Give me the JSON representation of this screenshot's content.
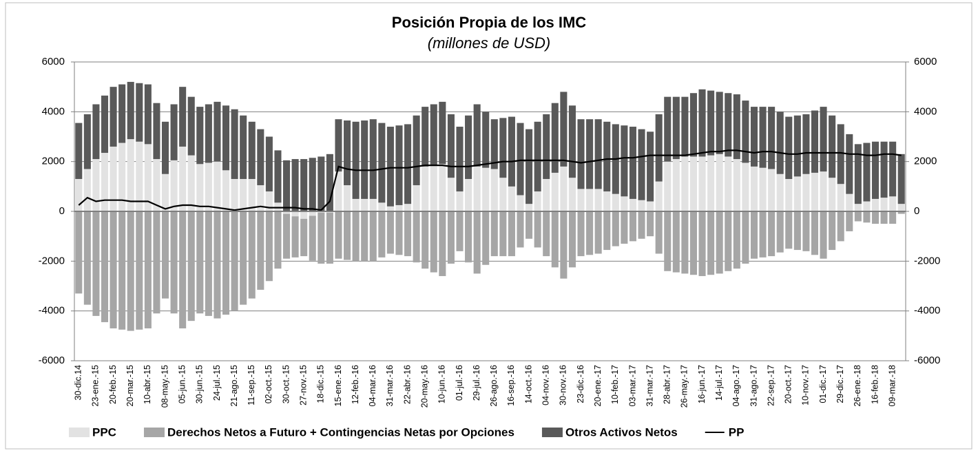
{
  "chart_data": {
    "type": "bar",
    "title": "Posición Propia de los IMC",
    "subtitle": "(millones de USD)",
    "categories": [
      "30-dic.14",
      null,
      "23-ene.-15",
      null,
      "20-feb.-15",
      null,
      "20-mar.-15",
      null,
      "10-abr.-15",
      null,
      "08-may.-15",
      null,
      "05-jun.-15",
      null,
      "30-jun.-15",
      null,
      "24-jul.-15",
      null,
      "21-ago.-15",
      null,
      "11-sep.-15",
      null,
      "02-oct.-15",
      null,
      "30-oct.-15",
      null,
      "27-nov.-15",
      null,
      "18-dic.-15",
      null,
      "15-ene.-16",
      null,
      "12-feb.-16",
      null,
      "04-mar.-16",
      null,
      "31-mar.-16",
      null,
      "22-abr.-16",
      null,
      "20-may.-16",
      null,
      "10-jun.-16",
      null,
      "01-jul.-16",
      null,
      "29-jul.-16",
      null,
      "26-ago.-16",
      null,
      "16-sep.-16",
      null,
      "14-oct.-16",
      null,
      "04-nov.-16",
      null,
      "30-nov.-16",
      null,
      "23-dic.-16",
      null,
      "20-ene.-17",
      null,
      "10-feb.-17",
      null,
      "03-mar.-17",
      null,
      "31-mar.-17",
      null,
      "28-abr.-17",
      null,
      "26-may.-17",
      null,
      "16-jun.-17",
      null,
      "14-jul.-17",
      null,
      "04-ago.-17",
      null,
      "31-ago.-17",
      null,
      "22-sep.-17",
      null,
      "20-oct.-17",
      null,
      "10-nov.-17",
      null,
      "01-dic.-17",
      null,
      "29-dic.-17",
      null,
      "26-ene.-18",
      null,
      "16-feb.-18",
      null,
      "09-mar.-18",
      null
    ],
    "series": [
      {
        "name": "PPC",
        "color": "#e2e2e2",
        "stack": "ppc",
        "values": [
          1300,
          1700,
          2100,
          2350,
          2600,
          2750,
          2900,
          2800,
          2700,
          2100,
          1500,
          2050,
          2600,
          2250,
          1900,
          1950,
          2000,
          1650,
          1300,
          1300,
          1300,
          1050,
          800,
          350,
          -100,
          -200,
          -300,
          -180,
          -50,
          -50,
          1600,
          1050,
          500,
          500,
          500,
          350,
          200,
          250,
          300,
          1050,
          1800,
          1850,
          1900,
          1350,
          800,
          1300,
          1800,
          1750,
          1700,
          1350,
          1000,
          650,
          300,
          800,
          1300,
          1550,
          1800,
          1350,
          900,
          900,
          900,
          800,
          700,
          600,
          500,
          450,
          400,
          1200,
          2000,
          2100,
          2200,
          2200,
          2200,
          2250,
          2300,
          2200,
          2100,
          1950,
          1800,
          1750,
          1700,
          1500,
          1300,
          1400,
          1500,
          1550,
          1600,
          1350,
          1100,
          700,
          300,
          400,
          500,
          550,
          600,
          300
        ]
      },
      {
        "name": "Derechos Netos a Futuro + Contingencias Netas por Opciones",
        "color": "#a6a6a6",
        "stack": "neg",
        "values": [
          -3300,
          -3750,
          -4200,
          -4450,
          -4700,
          -4750,
          -4800,
          -4750,
          -4700,
          -4100,
          -3500,
          -4100,
          -4700,
          -4400,
          -4100,
          -4200,
          -4300,
          -4150,
          -4000,
          -3750,
          -3500,
          -3150,
          -2800,
          -2300,
          -1800,
          -1650,
          -1500,
          -1800,
          -2050,
          -2050,
          -1900,
          -1950,
          -2000,
          -2000,
          -2000,
          -1850,
          -1700,
          -1750,
          -1800,
          -2050,
          -2300,
          -2450,
          -2600,
          -2100,
          -1600,
          -2050,
          -2500,
          -2150,
          -1800,
          -1800,
          -1800,
          -1450,
          -1100,
          -1450,
          -1800,
          -2250,
          -2700,
          -2250,
          -1800,
          -1750,
          -1700,
          -1550,
          -1400,
          -1300,
          -1200,
          -1100,
          -1000,
          -1700,
          -2400,
          -2450,
          -2500,
          -2550,
          -2600,
          -2550,
          -2500,
          -2400,
          -2300,
          -2100,
          -1900,
          -1850,
          -1800,
          -1650,
          -1500,
          -1550,
          -1600,
          -1750,
          -1900,
          -1550,
          -1200,
          -800,
          -400,
          -450,
          -500,
          -500,
          -500,
          -100
        ]
      },
      {
        "name": "Otros Activos Netos",
        "color": "#595959",
        "stack": "pos",
        "values": [
          2250,
          2200,
          2200,
          2300,
          2400,
          2350,
          2300,
          2350,
          2400,
          2250,
          2100,
          2250,
          2400,
          2350,
          2300,
          2350,
          2400,
          2600,
          2800,
          2550,
          2300,
          2250,
          2200,
          2100,
          2050,
          2100,
          2100,
          2150,
          2200,
          2300,
          2100,
          2600,
          3100,
          3150,
          3200,
          3200,
          3200,
          3200,
          3200,
          2800,
          2400,
          2450,
          2500,
          2550,
          2600,
          2550,
          2500,
          2250,
          2000,
          2400,
          2800,
          2900,
          3000,
          2800,
          2600,
          2800,
          3000,
          2900,
          2800,
          2800,
          2800,
          2800,
          2800,
          2850,
          2900,
          2850,
          2800,
          2700,
          2600,
          2500,
          2400,
          2550,
          2700,
          2600,
          2500,
          2550,
          2600,
          2500,
          2400,
          2450,
          2500,
          2500,
          2500,
          2450,
          2400,
          2500,
          2600,
          2500,
          2400,
          2400,
          2400,
          2350,
          2300,
          2250,
          2200,
          2000
        ]
      },
      {
        "name": "PP",
        "color": "#000000",
        "kind": "line",
        "values": [
          250,
          550,
          400,
          450,
          450,
          450,
          400,
          400,
          400,
          250,
          100,
          200,
          250,
          250,
          200,
          200,
          150,
          100,
          50,
          100,
          150,
          200,
          150,
          150,
          150,
          150,
          100,
          100,
          50,
          400,
          1800,
          1700,
          1650,
          1650,
          1650,
          1700,
          1750,
          1750,
          1750,
          1800,
          1850,
          1850,
          1850,
          1800,
          1800,
          1800,
          1850,
          1900,
          1950,
          2000,
          2000,
          2050,
          2050,
          2050,
          2050,
          2050,
          2050,
          2000,
          1950,
          2000,
          2050,
          2100,
          2100,
          2150,
          2150,
          2200,
          2250,
          2250,
          2250,
          2250,
          2250,
          2300,
          2350,
          2400,
          2400,
          2450,
          2450,
          2400,
          2350,
          2400,
          2400,
          2350,
          2300,
          2300,
          2350,
          2350,
          2350,
          2350,
          2350,
          2300,
          2300,
          2250,
          2250,
          2300,
          2300,
          2250
        ]
      }
    ],
    "ylim": [
      -6000,
      6000
    ],
    "yticks": [
      -6000,
      -4000,
      -2000,
      0,
      2000,
      4000,
      6000
    ],
    "y2lim": [
      -6000,
      6000
    ],
    "y2ticks": [
      -6000,
      -4000,
      -2000,
      0,
      2000,
      4000,
      6000
    ],
    "grid": true,
    "legend": "bottom"
  }
}
